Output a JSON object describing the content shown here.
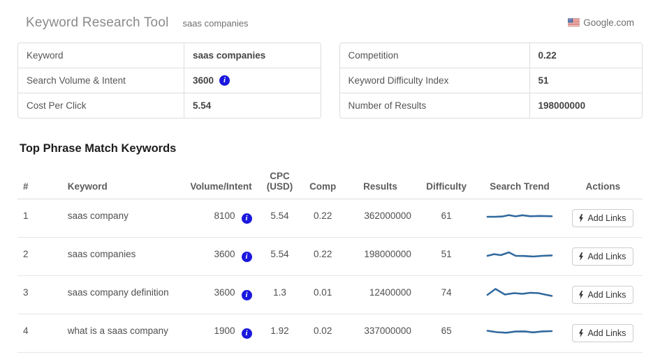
{
  "header": {
    "title": "Keyword Research Tool",
    "query": "saas companies",
    "search_engine": "Google.com",
    "flag_icon": "us-flag-icon"
  },
  "summary_left": {
    "rows": [
      {
        "label": "Keyword",
        "value": "saas companies"
      },
      {
        "label": "Search Volume & Intent",
        "value": "3600",
        "info_icon": "info-icon"
      },
      {
        "label": "Cost Per Click",
        "value": "5.54"
      }
    ]
  },
  "summary_right": {
    "rows": [
      {
        "label": "Competition",
        "value": "0.22"
      },
      {
        "label": "Keyword Difficulty Index",
        "value": "51"
      },
      {
        "label": "Number of Results",
        "value": "198000000"
      }
    ]
  },
  "section_title": "Top Phrase Match Keywords",
  "keywords_table": {
    "headers": {
      "num": "#",
      "keyword": "Keyword",
      "volume": "Volume/Intent",
      "cpc": "CPC (USD)",
      "comp": "Comp",
      "results": "Results",
      "difficulty": "Difficulty",
      "trend": "Search Trend",
      "actions": "Actions"
    },
    "add_links_label": "Add Links",
    "add_links_icon": "flash-icon",
    "rows": [
      {
        "num": "1",
        "keyword": "saas company",
        "volume": "8100",
        "cpc": "5.54",
        "comp": "0.22",
        "results": "362000000",
        "difficulty": "61",
        "trend": [
          [
            2,
            11
          ],
          [
            12,
            11
          ],
          [
            24,
            10.6
          ],
          [
            34,
            8.6
          ],
          [
            44,
            10.4
          ],
          [
            54,
            8.8
          ],
          [
            66,
            10.2
          ],
          [
            80,
            9.8
          ],
          [
            98,
            10.2
          ]
        ]
      },
      {
        "num": "2",
        "keyword": "saas companies",
        "volume": "3600",
        "cpc": "5.54",
        "comp": "0.22",
        "results": "198000000",
        "difficulty": "51",
        "trend": [
          [
            2,
            12
          ],
          [
            12,
            9.6
          ],
          [
            22,
            11
          ],
          [
            34,
            7
          ],
          [
            44,
            12
          ],
          [
            56,
            12.2
          ],
          [
            70,
            13
          ],
          [
            84,
            12
          ],
          [
            98,
            11.4
          ]
        ]
      },
      {
        "num": "3",
        "keyword": "saas company definition",
        "volume": "3600",
        "cpc": "1.3",
        "comp": "0.01",
        "results": "12400000",
        "difficulty": "74",
        "trend": [
          [
            2,
            13
          ],
          [
            14,
            4.5
          ],
          [
            28,
            12.5
          ],
          [
            42,
            10.5
          ],
          [
            54,
            11.5
          ],
          [
            66,
            10
          ],
          [
            78,
            10.5
          ],
          [
            90,
            13
          ],
          [
            98,
            14.5
          ]
        ]
      },
      {
        "num": "4",
        "keyword": "what is a saas company",
        "volume": "1900",
        "cpc": "1.92",
        "comp": "0.02",
        "results": "337000000",
        "difficulty": "65",
        "trend": [
          [
            2,
            9.5
          ],
          [
            16,
            11.5
          ],
          [
            30,
            12.3
          ],
          [
            44,
            10.6
          ],
          [
            58,
            10.4
          ],
          [
            70,
            11.8
          ],
          [
            84,
            10.4
          ],
          [
            98,
            10
          ]
        ]
      }
    ]
  },
  "colors": {
    "accent_blue": "#1a18dc",
    "trend_line": "#31699e"
  }
}
